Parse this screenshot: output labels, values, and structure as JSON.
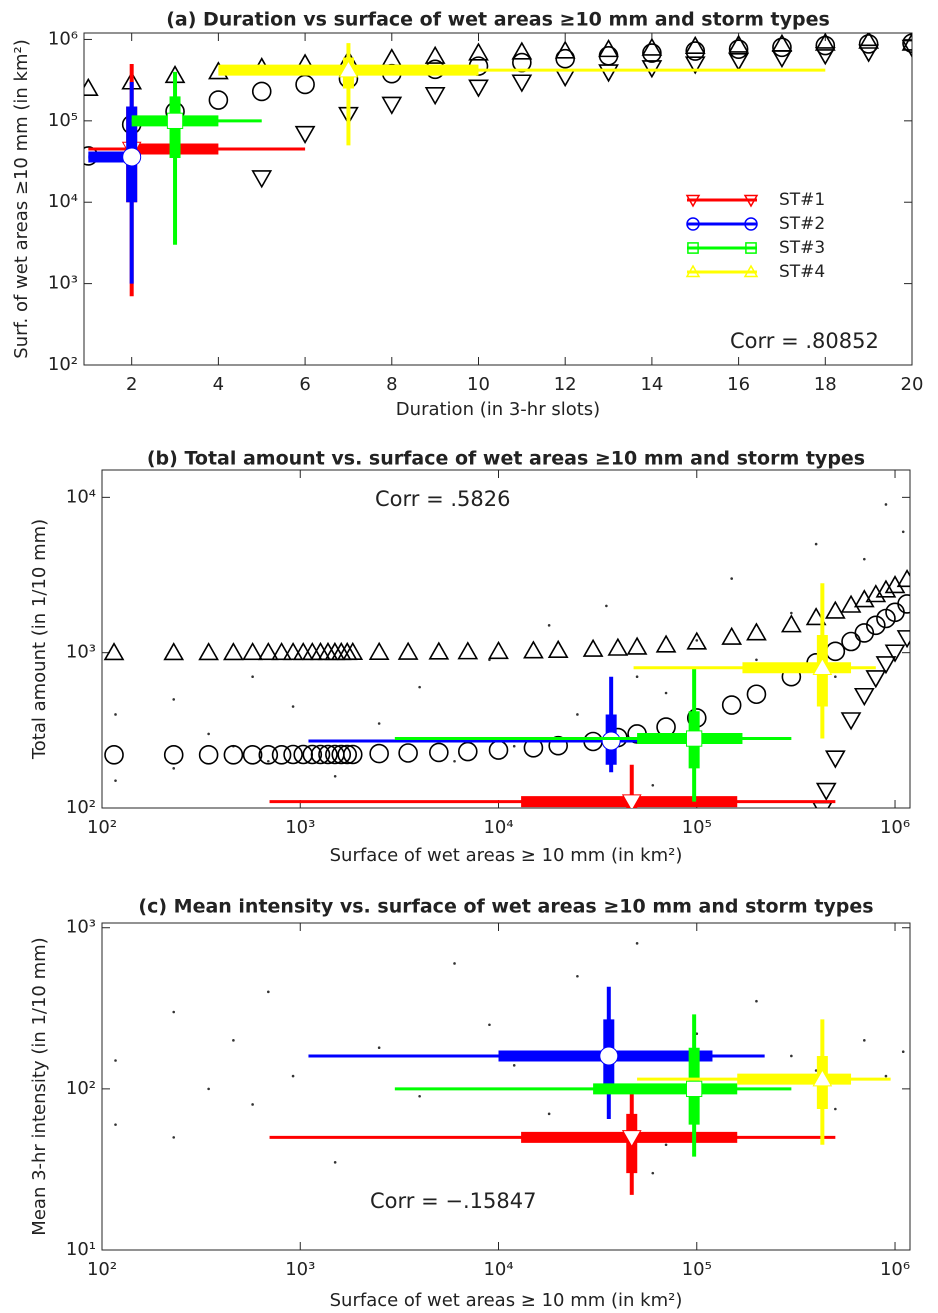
{
  "chart_data": [
    {
      "type": "scatter",
      "title": "(a) Duration vs  surface of wet areas ≥10 mm and storm types",
      "x_label": "Duration (in 3-hr slots)",
      "y_label": "Surf. of wet areas ≥10 mm (in km²)",
      "xscale": "linear",
      "yscale": "log",
      "xlim": [
        0.9,
        20
      ],
      "ylim": [
        100,
        1200000
      ],
      "xticks": [
        2,
        4,
        6,
        8,
        10,
        12,
        14,
        16,
        18,
        20
      ],
      "yticks": [
        {
          "value": 100,
          "label": "10²"
        },
        {
          "value": 1000,
          "label": "10³"
        },
        {
          "value": 10000,
          "label": "10⁴"
        },
        {
          "value": 100000,
          "label": "10⁵"
        },
        {
          "value": 1000000,
          "label": "10⁶"
        }
      ],
      "annotation": "Corr = .80852",
      "legend_position": "lower right",
      "series": [
        {
          "name": "ST#1",
          "color": "#ff0000",
          "marker": "v",
          "x": 2,
          "y": 45000,
          "x_range": [
            1,
            6
          ],
          "x_iqr": [
            2,
            4
          ],
          "y_range": [
            700,
            500000
          ],
          "y_iqr": [
            10000,
            150000
          ]
        },
        {
          "name": "ST#2",
          "color": "#0000ff",
          "marker": "o",
          "x": 2,
          "y": 36000,
          "x_range": [
            1,
            2
          ],
          "x_iqr": [
            1,
            2
          ],
          "y_range": [
            1000,
            300000
          ],
          "y_iqr": [
            10000,
            150000
          ]
        },
        {
          "name": "ST#3",
          "color": "#00ff00",
          "marker": "s",
          "x": 3,
          "y": 100000,
          "x_range": [
            2,
            5
          ],
          "x_iqr": [
            2,
            4
          ],
          "y_range": [
            3000,
            400000
          ],
          "y_iqr": [
            35000,
            200000
          ]
        },
        {
          "name": "ST#4",
          "color": "#ffff00",
          "marker": "^",
          "x": 7,
          "y": 420000,
          "x_range": [
            4,
            18
          ],
          "x_iqr": [
            4,
            10
          ],
          "y_range": [
            50000,
            900000
          ],
          "y_iqr": [
            250000,
            600000
          ]
        }
      ],
      "reference": [
        {
          "color": "#000000",
          "marker": "^",
          "x": [
            1,
            2,
            3,
            4,
            5,
            6,
            7,
            8,
            9,
            10,
            11,
            12,
            13,
            14,
            15,
            16,
            17,
            18,
            19,
            20
          ],
          "values": [
            250000,
            300000,
            360000,
            400000,
            450000,
            500000,
            550000,
            580000,
            620000,
            680000,
            700000,
            720000,
            750000,
            780000,
            820000,
            850000,
            870000,
            900000,
            950000,
            900000
          ]
        },
        {
          "color": "#000000",
          "marker": "o",
          "x": [
            1,
            2,
            3,
            4,
            5,
            6,
            7,
            8,
            9,
            10,
            11,
            12,
            13,
            14,
            15,
            16,
            17,
            18,
            19,
            20
          ],
          "values": [
            37000,
            90000,
            130000,
            180000,
            230000,
            280000,
            330000,
            380000,
            430000,
            470000,
            520000,
            580000,
            630000,
            680000,
            720000,
            760000,
            800000,
            840000,
            880000,
            900000
          ]
        },
        {
          "color": "#000000",
          "marker": "v",
          "x": [
            1,
            2,
            3,
            4,
            5,
            6,
            7,
            8,
            9,
            10,
            11,
            12,
            13,
            14,
            15,
            16,
            17,
            18,
            19,
            20
          ],
          "values": [
            null,
            null,
            null,
            null,
            20000,
            70000,
            120000,
            160000,
            210000,
            260000,
            300000,
            350000,
            400000,
            450000,
            500000,
            550000,
            600000,
            650000,
            700000,
            800000
          ]
        }
      ]
    },
    {
      "type": "scatter",
      "title": "(b) Total amount vs. surface of wet areas ≥10 mm and storm types",
      "x_label": "Surface of wet areas ≥ 10 mm (in km²)",
      "y_label": "Total amount (in 1/10 mm)",
      "xscale": "log",
      "yscale": "log",
      "xlim": [
        100,
        1190000
      ],
      "ylim": [
        100,
        15000
      ],
      "xticks": [
        {
          "value": 100,
          "label": "10²"
        },
        {
          "value": 1000,
          "label": "10³"
        },
        {
          "value": 10000,
          "label": "10⁴"
        },
        {
          "value": 100000,
          "label": "10⁵"
        },
        {
          "value": 1000000,
          "label": "10⁶"
        }
      ],
      "yticks": [
        {
          "value": 100,
          "label": "10²"
        },
        {
          "value": 1000,
          "label": "10³"
        },
        {
          "value": 10000,
          "label": "10⁴"
        }
      ],
      "annotation": "Corr = .5826",
      "points": {
        "color": "#333333",
        "x": [
          117,
          117,
          230,
          230,
          345,
          460,
          575,
          690,
          920,
          1500,
          2500,
          4000,
          6000,
          9000,
          12000,
          18000,
          25000,
          35000,
          50000,
          70000,
          100000,
          150000,
          200000,
          300000,
          400000,
          500000,
          700000,
          900000,
          1100000,
          60000
        ],
        "y": [
          150,
          400,
          180,
          500,
          300,
          250,
          700,
          200,
          450,
          160,
          350,
          600,
          200,
          900,
          250,
          1500,
          400,
          2000,
          700,
          550,
          1200,
          3000,
          900,
          1800,
          5000,
          700,
          4000,
          9000,
          6000,
          140
        ]
      },
      "series": [
        {
          "color": "#ff0000",
          "marker": "v",
          "x": 47000,
          "y": 110,
          "x_range": [
            700,
            500000
          ],
          "x_iqr": [
            13000,
            160000
          ],
          "y_range": [
            100,
            190
          ],
          "y_iqr": [
            100,
            120
          ]
        },
        {
          "color": "#0000ff",
          "marker": "o",
          "x": 37000,
          "y": 270,
          "x_range": [
            1100,
            100000
          ],
          "x_iqr": [
            35000,
            40000
          ],
          "y_range": [
            170,
            700
          ],
          "y_iqr": [
            190,
            400
          ]
        },
        {
          "color": "#00ff00",
          "marker": "s",
          "x": 97000,
          "y": 280,
          "x_range": [
            3000,
            300000
          ],
          "x_iqr": [
            50000,
            170000
          ],
          "y_range": [
            110,
            800
          ],
          "y_iqr": [
            180,
            420
          ]
        },
        {
          "color": "#ffff00",
          "marker": "^",
          "x": 430000,
          "y": 800,
          "x_range": [
            48000,
            800000
          ],
          "x_iqr": [
            170000,
            600000
          ],
          "y_range": [
            280,
            2800
          ],
          "y_iqr": [
            450,
            1300
          ]
        }
      ],
      "reference": [
        {
          "color": "#000000",
          "marker": "^",
          "x": [
            115,
            230,
            345,
            460,
            575,
            690,
            805,
            920,
            1035,
            1150,
            1265,
            1380,
            1495,
            1610,
            1725,
            1840,
            2500,
            3500,
            5000,
            7000,
            10000,
            15000,
            20000,
            30000,
            40000,
            50000,
            70000,
            100000,
            150000,
            200000,
            300000,
            400000,
            500000,
            600000,
            700000,
            800000,
            900000,
            1000000,
            1150000
          ],
          "values": [
            1000,
            1000,
            1000,
            1000,
            1001,
            1001,
            1001,
            1001,
            1001,
            1001,
            1002,
            1002,
            1002,
            1002,
            1002,
            1003,
            1004,
            1006,
            1009,
            1012,
            1017,
            1026,
            1034,
            1051,
            1068,
            1085,
            1119,
            1170,
            1255,
            1340,
            1510,
            1680,
            1850,
            2020,
            2190,
            2360,
            2530,
            2700,
            2955
          ]
        },
        {
          "color": "#000000",
          "marker": "o",
          "x": [
            115,
            230,
            345,
            460,
            575,
            690,
            805,
            920,
            1035,
            1150,
            1265,
            1380,
            1495,
            1610,
            1725,
            1840,
            2500,
            3500,
            5000,
            7000,
            10000,
            15000,
            20000,
            30000,
            40000,
            50000,
            70000,
            100000,
            150000,
            200000,
            300000,
            400000,
            500000,
            600000,
            700000,
            800000,
            900000,
            1000000,
            1150000
          ],
          "values": [
            220,
            220,
            220,
            220,
            220,
            220,
            220,
            221,
            221,
            221,
            221,
            221,
            221,
            221,
            221,
            221,
            224,
            226,
            228,
            231,
            236,
            244,
            252,
            268,
            284,
            300,
            332,
            380,
            460,
            540,
            700,
            860,
            1020,
            1180,
            1340,
            1500,
            1660,
            1820,
            2060
          ]
        },
        {
          "color": "#000000",
          "marker": "v",
          "x": [
            430000,
            450000,
            500000,
            600000,
            700000,
            800000,
            900000,
            1000000,
            1150000
          ],
          "values": [
            98,
            130,
            210,
            370,
            530,
            690,
            850,
            1010,
            1250
          ]
        }
      ]
    },
    {
      "type": "scatter",
      "title": "(c) Mean intensity vs. surface of wet areas ≥10 mm and storm types",
      "x_label": "Surface of wet areas ≥ 10 mm (in km²)",
      "y_label": "Mean 3-hr intensity (in 1/10 mm)",
      "xscale": "log",
      "yscale": "log",
      "xlim": [
        100,
        1190000
      ],
      "ylim": [
        10,
        1070
      ],
      "xticks": [
        {
          "value": 100,
          "label": "10²"
        },
        {
          "value": 1000,
          "label": "10³"
        },
        {
          "value": 10000,
          "label": "10⁴"
        },
        {
          "value": 100000,
          "label": "10⁵"
        },
        {
          "value": 1000000,
          "label": "10⁶"
        }
      ],
      "yticks": [
        {
          "value": 10,
          "label": "10¹"
        },
        {
          "value": 100,
          "label": "10²"
        },
        {
          "value": 1000,
          "label": "10³"
        }
      ],
      "annotation": "Corr = −.15847",
      "points": {
        "color": "#333333",
        "x": [
          117,
          117,
          230,
          230,
          345,
          460,
          575,
          690,
          920,
          1500,
          2500,
          4000,
          6000,
          9000,
          12000,
          18000,
          25000,
          35000,
          50000,
          70000,
          100000,
          150000,
          200000,
          300000,
          400000,
          500000,
          700000,
          900000,
          1100000,
          60000
        ],
        "y": [
          60,
          150,
          50,
          300,
          100,
          200,
          80,
          400,
          120,
          35,
          180,
          90,
          600,
          250,
          140,
          70,
          500,
          110,
          800,
          45,
          220,
          95,
          350,
          160,
          130,
          75,
          200,
          120,
          170,
          30
        ]
      },
      "series": [
        {
          "color": "#ff0000",
          "marker": "v",
          "x": 47000,
          "y": 50,
          "x_range": [
            700,
            500000
          ],
          "x_iqr": [
            13000,
            160000
          ],
          "y_range": [
            22,
            95
          ],
          "y_iqr": [
            30,
            70
          ]
        },
        {
          "color": "#0000ff",
          "marker": "o",
          "x": 36000,
          "y": 160,
          "x_range": [
            1100,
            220000
          ],
          "x_iqr": [
            10000,
            120000
          ],
          "y_range": [
            65,
            430
          ],
          "y_iqr": [
            100,
            270
          ]
        },
        {
          "color": "#00ff00",
          "marker": "s",
          "x": 97000,
          "y": 100,
          "x_range": [
            3000,
            300000
          ],
          "x_iqr": [
            30000,
            160000
          ],
          "y_range": [
            38,
            290
          ],
          "y_iqr": [
            60,
            180
          ]
        },
        {
          "color": "#ffff00",
          "marker": "^",
          "x": 430000,
          "y": 115,
          "x_range": [
            50000,
            950000
          ],
          "x_iqr": [
            160000,
            600000
          ],
          "y_range": [
            45,
            270
          ],
          "y_iqr": [
            75,
            160
          ]
        }
      ]
    }
  ]
}
